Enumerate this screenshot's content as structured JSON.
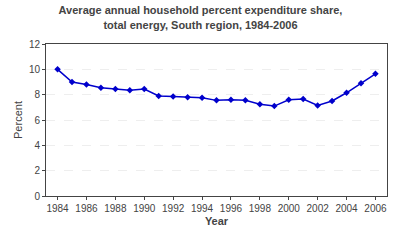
{
  "chart_data": {
    "type": "line",
    "title": "Average annual household percent expenditure share,\ntotal energy, South region, 1984-2006",
    "xlabel": "Year",
    "ylabel": "Percent",
    "x": [
      1984,
      1985,
      1986,
      1987,
      1988,
      1989,
      1990,
      1991,
      1992,
      1993,
      1994,
      1995,
      1996,
      1997,
      1998,
      1999,
      2000,
      2001,
      2002,
      2003,
      2004,
      2005,
      2006
    ],
    "values": [
      10.0,
      9.0,
      8.8,
      8.55,
      8.45,
      8.35,
      8.45,
      7.9,
      7.85,
      7.8,
      7.75,
      7.55,
      7.6,
      7.55,
      7.25,
      7.1,
      7.6,
      7.65,
      7.15,
      7.5,
      8.15,
      8.9,
      9.65
    ],
    "color": "#0000CC",
    "marker": "diamond",
    "xlim": [
      1983.2,
      2006.8
    ],
    "xticks": [
      1984,
      1986,
      1988,
      1990,
      1992,
      1994,
      1996,
      1998,
      2000,
      2002,
      2004,
      2006
    ],
    "ylim": [
      0,
      12
    ],
    "yticks": [
      0,
      2,
      4,
      6,
      8,
      10,
      12
    ],
    "grid": true
  }
}
